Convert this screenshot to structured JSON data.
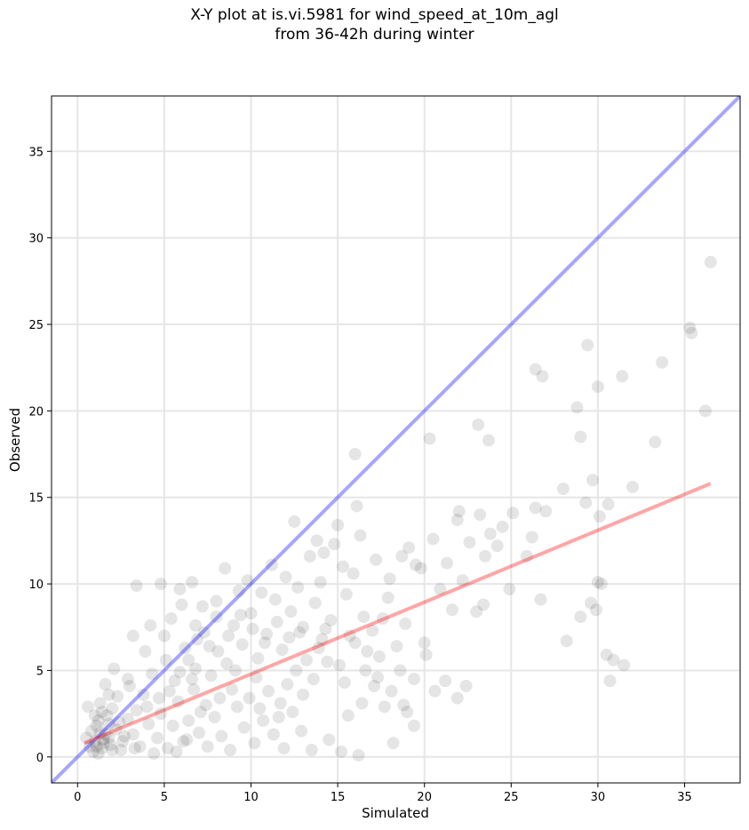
{
  "chart_data": {
    "type": "scatter",
    "title_lines": [
      "X-Y plot at is.vi.5981 for wind_speed_at_10m_agl",
      "from 36-42h during winter"
    ],
    "xlabel": "Simulated",
    "ylabel": "Observed",
    "xlim": [
      -1.5,
      38.2
    ],
    "ylim": [
      -1.5,
      38.2
    ],
    "xticks": [
      0,
      5,
      10,
      15,
      20,
      25,
      30,
      35
    ],
    "yticks": [
      0,
      5,
      10,
      15,
      20,
      25,
      30,
      35
    ],
    "grid": true,
    "point_color": "#000000",
    "point_alpha": 0.1,
    "one_to_one_line": {
      "x": [
        -1.5,
        38.2
      ],
      "y": [
        -1.5,
        38.2
      ],
      "color": "#0000ff",
      "alpha": 0.35
    },
    "regression_line": {
      "x": [
        0.4,
        36.5
      ],
      "y": [
        0.8,
        15.8
      ],
      "color": "#ff0000",
      "alpha": 0.35
    },
    "points": [
      [
        0.8,
        1.5
      ],
      [
        1.0,
        0.9
      ],
      [
        1.2,
        2.1
      ],
      [
        1.4,
        0.5
      ],
      [
        1.6,
        1.3
      ],
      [
        1.1,
        1.8
      ],
      [
        1.9,
        0.7
      ],
      [
        2.2,
        1.6
      ],
      [
        0.6,
        2.9
      ],
      [
        1.3,
        3.1
      ],
      [
        1.7,
        2.4
      ],
      [
        2.5,
        0.4
      ],
      [
        0.9,
        0.3
      ],
      [
        1.5,
        1.0
      ],
      [
        2.0,
        2.8
      ],
      [
        1.2,
        0.2
      ],
      [
        1.8,
        1.9
      ],
      [
        2.7,
        1.2
      ],
      [
        0.5,
        1.1
      ],
      [
        1.4,
        2.6
      ],
      [
        2.3,
        3.5
      ],
      [
        1.6,
        4.2
      ],
      [
        2.9,
        2.2
      ],
      [
        3.2,
        1.3
      ],
      [
        3.6,
        0.6
      ],
      [
        4.1,
        1.9
      ],
      [
        3.4,
        2.7
      ],
      [
        4.6,
        1.1
      ],
      [
        5.2,
        0.5
      ],
      [
        4.8,
        2.5
      ],
      [
        3.0,
        4.1
      ],
      [
        3.8,
        3.6
      ],
      [
        4.3,
        4.8
      ],
      [
        5.5,
        1.8
      ],
      [
        6.1,
        0.9
      ],
      [
        5.8,
        3.2
      ],
      [
        6.4,
        2.1
      ],
      [
        7.0,
        1.4
      ],
      [
        6.7,
        3.9
      ],
      [
        7.5,
        0.6
      ],
      [
        7.9,
        2.3
      ],
      [
        8.3,
        1.2
      ],
      [
        8.8,
        0.4
      ],
      [
        9.2,
        2.9
      ],
      [
        9.6,
        1.7
      ],
      [
        10.2,
        0.8
      ],
      [
        10.7,
        2.1
      ],
      [
        11.3,
        1.3
      ],
      [
        11.9,
        0.5
      ],
      [
        12.4,
        2.6
      ],
      [
        5.1,
        5.6
      ],
      [
        5.6,
        4.4
      ],
      [
        6.2,
        6.3
      ],
      [
        6.8,
        5.1
      ],
      [
        7.3,
        7.2
      ],
      [
        7.7,
        4.7
      ],
      [
        8.1,
        6.1
      ],
      [
        8.6,
        5.4
      ],
      [
        9.0,
        7.6
      ],
      [
        9.5,
        6.5
      ],
      [
        10.0,
        8.3
      ],
      [
        10.4,
        5.7
      ],
      [
        10.9,
        7.1
      ],
      [
        11.4,
        9.1
      ],
      [
        11.8,
        6.2
      ],
      [
        12.3,
        8.4
      ],
      [
        12.8,
        7.2
      ],
      [
        13.2,
        5.6
      ],
      [
        13.7,
        8.9
      ],
      [
        14.1,
        6.8
      ],
      [
        14.6,
        7.9
      ],
      [
        15.1,
        5.3
      ],
      [
        15.5,
        9.4
      ],
      [
        16.0,
        6.6
      ],
      [
        16.5,
        8.1
      ],
      [
        17.0,
        7.3
      ],
      [
        17.4,
        5.8
      ],
      [
        17.9,
        9.2
      ],
      [
        18.4,
        6.4
      ],
      [
        18.9,
        7.7
      ],
      [
        9.8,
        10.2
      ],
      [
        10.6,
        9.5
      ],
      [
        11.2,
        11.1
      ],
      [
        12.0,
        10.4
      ],
      [
        12.7,
        9.8
      ],
      [
        13.4,
        11.6
      ],
      [
        14.0,
        10.1
      ],
      [
        14.8,
        12.3
      ],
      [
        15.3,
        11.0
      ],
      [
        15.9,
        10.6
      ],
      [
        16.3,
        12.8
      ],
      [
        17.2,
        11.4
      ],
      [
        18.0,
        10.3
      ],
      [
        19.1,
        12.1
      ],
      [
        19.8,
        10.9
      ],
      [
        20.5,
        12.6
      ],
      [
        21.3,
        11.2
      ],
      [
        21.9,
        13.7
      ],
      [
        22.6,
        12.4
      ],
      [
        23.2,
        14.0
      ],
      [
        23.8,
        12.9
      ],
      [
        24.5,
        13.3
      ],
      [
        25.1,
        14.1
      ],
      [
        26.2,
        12.7
      ],
      [
        27.0,
        14.2
      ],
      [
        22.0,
        14.2
      ],
      [
        23.5,
        11.6
      ],
      [
        24.2,
        12.2
      ],
      [
        25.9,
        11.6
      ],
      [
        26.4,
        14.4
      ],
      [
        12.5,
        13.6
      ],
      [
        15.0,
        13.4
      ],
      [
        16.1,
        14.5
      ],
      [
        16.0,
        17.5
      ],
      [
        14.2,
        11.8
      ],
      [
        13.8,
        12.5
      ],
      [
        20.3,
        18.4
      ],
      [
        23.1,
        19.2
      ],
      [
        23.7,
        18.3
      ],
      [
        28.0,
        15.5
      ],
      [
        29.3,
        14.7
      ],
      [
        30.1,
        13.9
      ],
      [
        30.6,
        14.6
      ],
      [
        32.0,
        15.6
      ],
      [
        28.8,
        20.2
      ],
      [
        29.0,
        18.5
      ],
      [
        29.4,
        23.8
      ],
      [
        30.0,
        21.4
      ],
      [
        31.4,
        22.0
      ],
      [
        33.7,
        22.8
      ],
      [
        26.4,
        22.4
      ],
      [
        26.8,
        22.0
      ],
      [
        33.3,
        18.2
      ],
      [
        35.3,
        24.8
      ],
      [
        35.4,
        24.5
      ],
      [
        36.2,
        20.0
      ],
      [
        36.5,
        28.6
      ],
      [
        29.7,
        16.0
      ],
      [
        24.9,
        9.7
      ],
      [
        26.7,
        9.1
      ],
      [
        28.2,
        6.7
      ],
      [
        29.0,
        8.1
      ],
      [
        29.6,
        8.9
      ],
      [
        29.9,
        8.5
      ],
      [
        30.0,
        10.1
      ],
      [
        30.2,
        10.0
      ],
      [
        30.5,
        5.9
      ],
      [
        30.9,
        5.6
      ],
      [
        30.7,
        4.4
      ],
      [
        31.5,
        5.3
      ],
      [
        19.4,
        4.5
      ],
      [
        20.1,
        5.9
      ],
      [
        20.6,
        3.8
      ],
      [
        21.2,
        4.4
      ],
      [
        21.9,
        3.4
      ],
      [
        22.4,
        4.1
      ],
      [
        19.0,
        2.6
      ],
      [
        19.4,
        1.8
      ],
      [
        18.2,
        0.8
      ],
      [
        17.7,
        2.9
      ],
      [
        16.2,
        0.1
      ],
      [
        15.2,
        0.3
      ],
      [
        14.5,
        1.0
      ],
      [
        13.5,
        0.4
      ],
      [
        12.9,
        1.5
      ],
      [
        11.6,
        2.3
      ],
      [
        9.9,
        3.4
      ],
      [
        8.9,
        3.9
      ],
      [
        7.4,
        3.0
      ],
      [
        6.6,
        4.5
      ],
      [
        3.4,
        9.9
      ],
      [
        4.8,
        10.0
      ],
      [
        5.9,
        9.7
      ],
      [
        6.6,
        10.1
      ],
      [
        7.2,
        8.7
      ],
      [
        8.0,
        9.0
      ],
      [
        8.5,
        10.9
      ],
      [
        9.3,
        9.6
      ],
      [
        4.2,
        7.6
      ],
      [
        3.2,
        7.0
      ],
      [
        2.1,
        5.1
      ],
      [
        2.9,
        4.5
      ],
      [
        1.8,
        3.6
      ],
      [
        3.9,
        6.1
      ],
      [
        5.0,
        7.0
      ],
      [
        5.4,
        8.0
      ],
      [
        6.0,
        8.8
      ],
      [
        6.8,
        7.6
      ],
      [
        18.7,
        11.6
      ],
      [
        19.5,
        11.1
      ],
      [
        20.9,
        9.7
      ],
      [
        21.6,
        8.5
      ],
      [
        22.2,
        10.2
      ],
      [
        23.0,
        8.4
      ],
      [
        23.4,
        8.8
      ],
      [
        20.0,
        6.6
      ],
      [
        18.6,
        5.0
      ],
      [
        17.1,
        4.1
      ],
      [
        16.4,
        3.1
      ],
      [
        15.6,
        2.4
      ],
      [
        13.0,
        3.6
      ],
      [
        12.1,
        4.2
      ],
      [
        11.0,
        3.8
      ],
      [
        10.3,
        4.6
      ],
      [
        9.1,
        5.0
      ],
      [
        8.2,
        3.4
      ],
      [
        7.1,
        2.6
      ],
      [
        6.3,
        1.0
      ],
      [
        5.7,
        0.3
      ],
      [
        4.4,
        0.2
      ],
      [
        3.3,
        0.5
      ],
      [
        2.6,
        0.9
      ],
      [
        2.4,
        2.0
      ],
      [
        1.0,
        2.4
      ],
      [
        0.7,
        0.6
      ],
      [
        1.3,
        1.4
      ],
      [
        1.5,
        0.8
      ],
      [
        1.1,
        0.6
      ],
      [
        1.8,
        1.1
      ],
      [
        2.0,
        0.4
      ],
      [
        10.8,
        6.6
      ],
      [
        11.5,
        7.8
      ],
      [
        12.2,
        6.9
      ],
      [
        13.0,
        7.5
      ],
      [
        13.9,
        6.3
      ],
      [
        14.3,
        7.4
      ],
      [
        15.7,
        7.0
      ],
      [
        16.7,
        6.1
      ],
      [
        17.6,
        8.0
      ],
      [
        10.1,
        7.4
      ],
      [
        9.4,
        8.2
      ],
      [
        8.7,
        7.0
      ],
      [
        8.0,
        8.1
      ],
      [
        7.6,
        6.4
      ],
      [
        6.9,
        6.8
      ],
      [
        6.4,
        5.6
      ],
      [
        5.9,
        4.9
      ],
      [
        5.3,
        3.8
      ],
      [
        4.7,
        3.4
      ],
      [
        4.0,
        2.9
      ],
      [
        12.6,
        5.0
      ],
      [
        13.6,
        4.5
      ],
      [
        14.4,
        5.5
      ],
      [
        15.4,
        4.3
      ],
      [
        16.6,
        5.0
      ],
      [
        17.3,
        4.6
      ],
      [
        18.1,
        3.8
      ],
      [
        18.8,
        3.0
      ],
      [
        11.7,
        3.1
      ],
      [
        10.5,
        2.8
      ]
    ]
  }
}
